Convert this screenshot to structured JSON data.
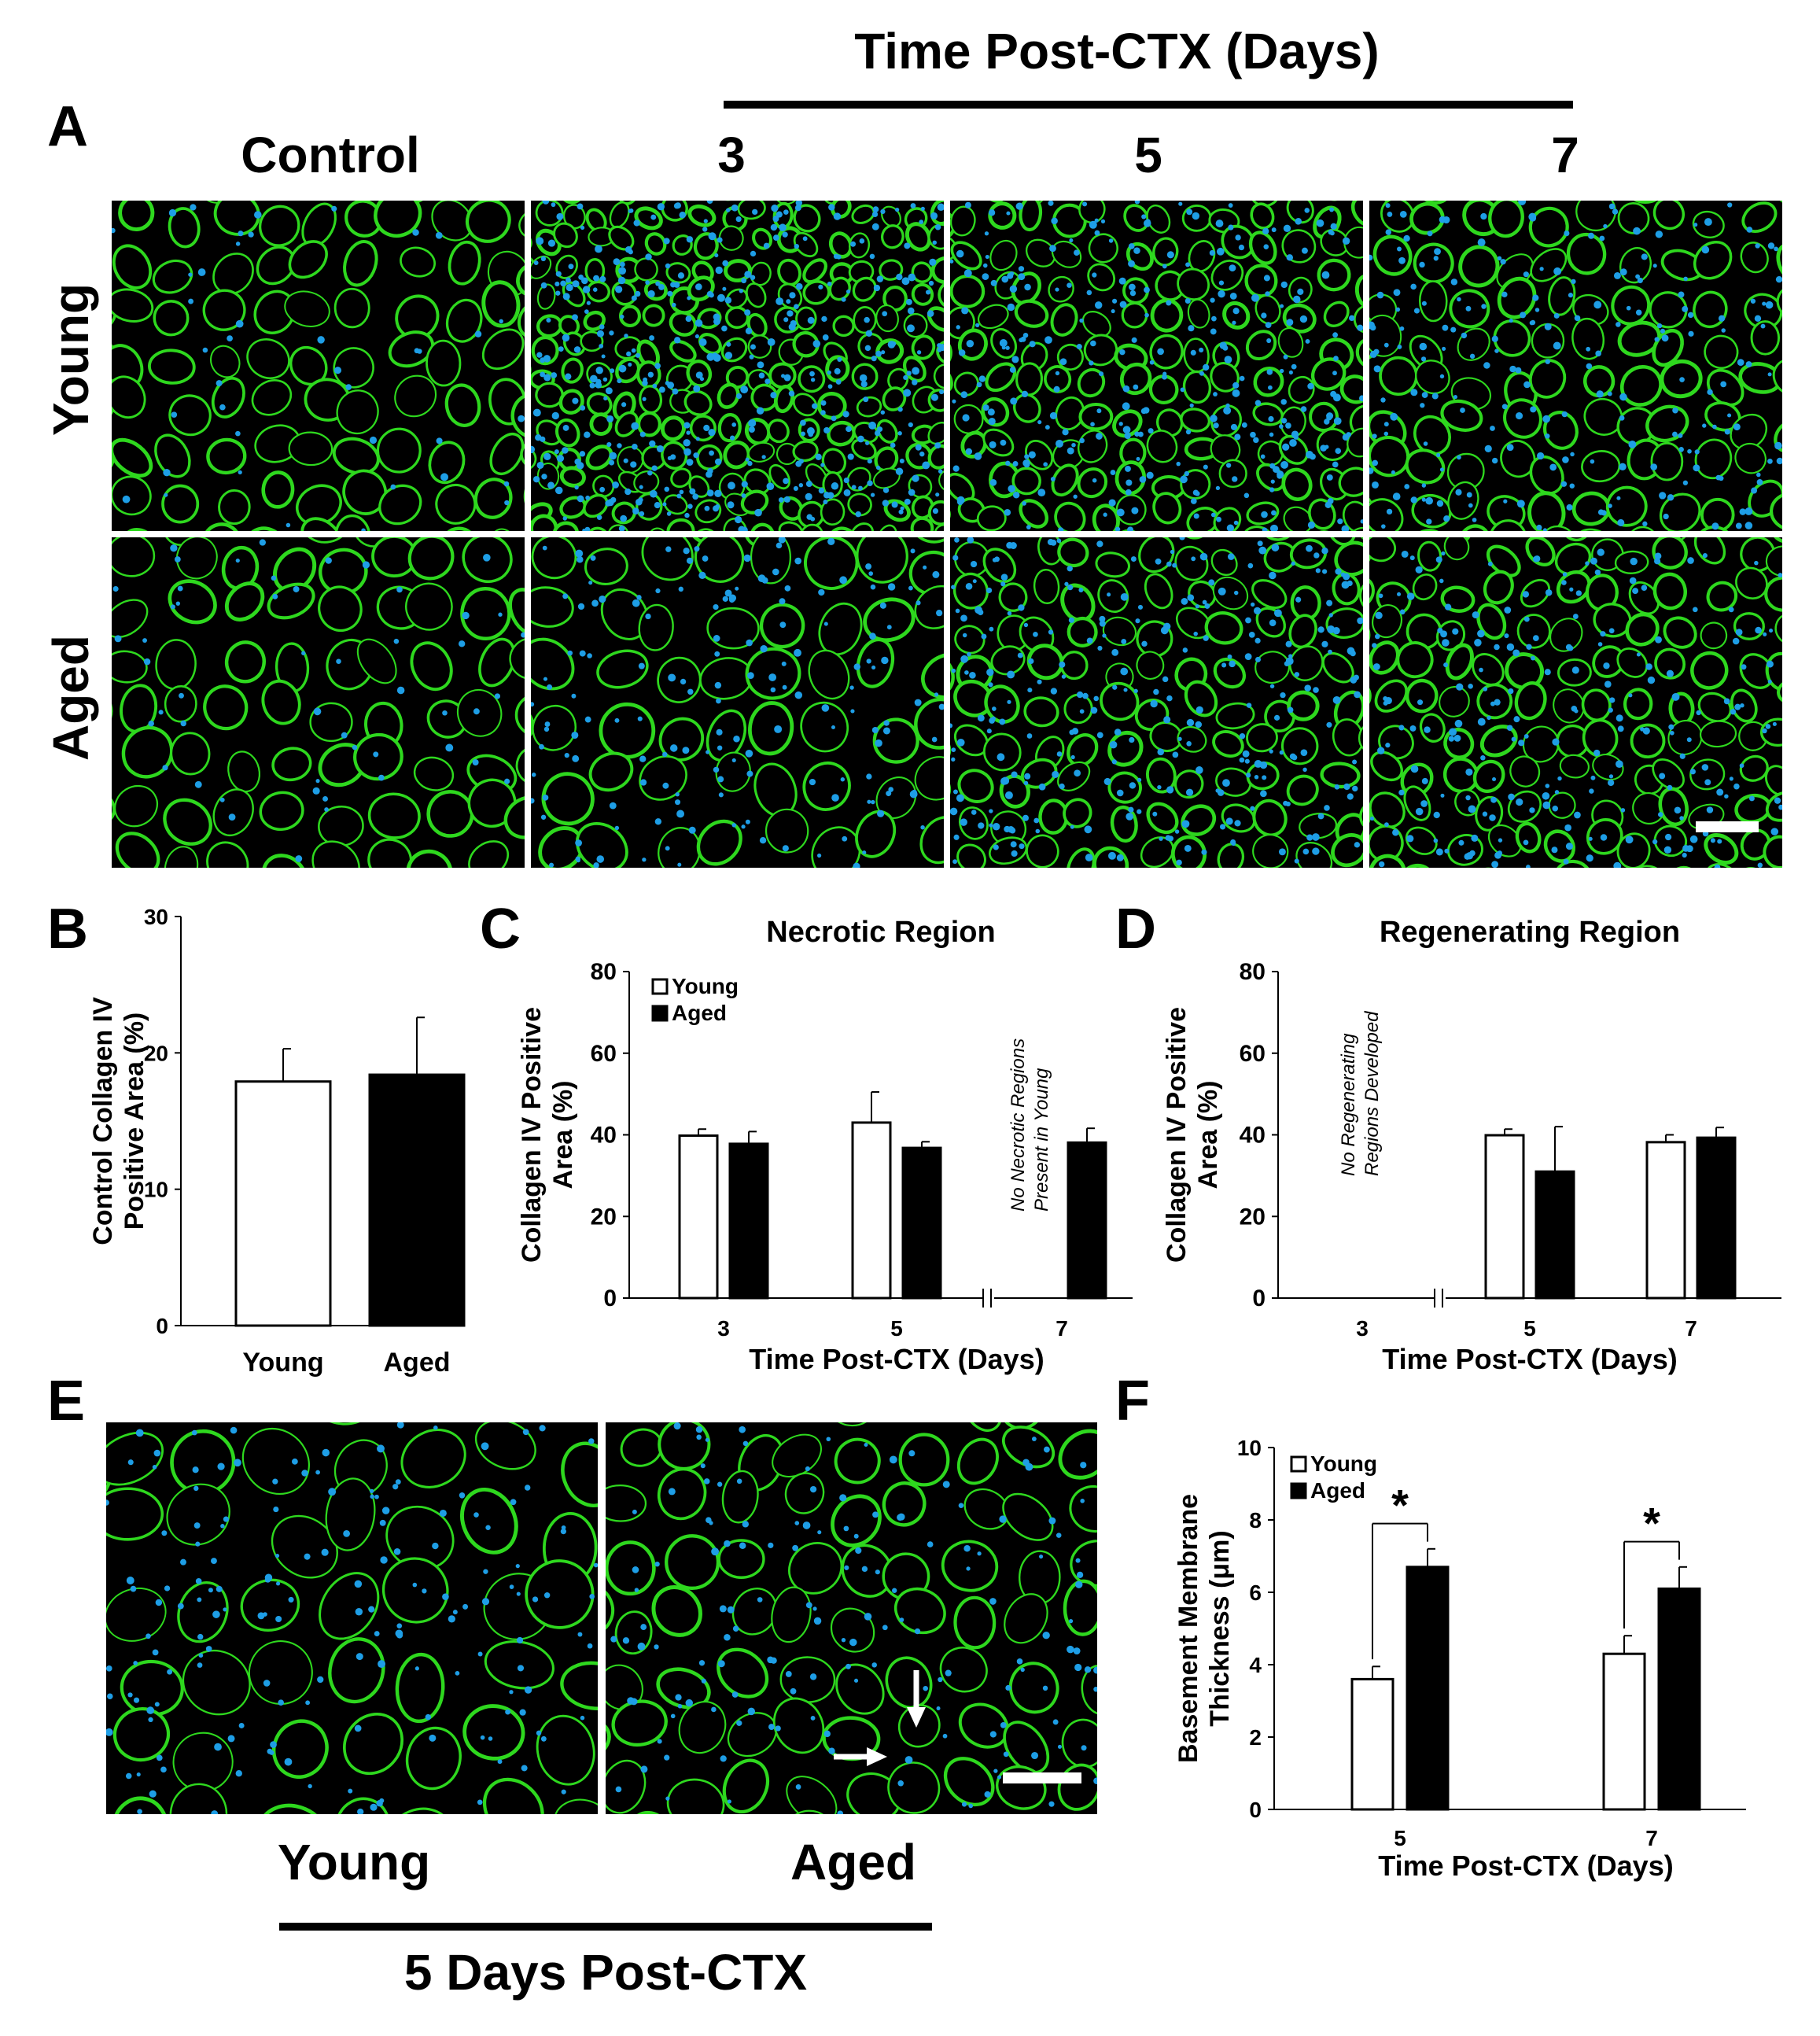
{
  "panelA": {
    "letter": "A",
    "header_group": "Time Post-CTX (Days)",
    "columns": [
      "Control",
      "3",
      "5",
      "7"
    ],
    "rows": [
      "Young",
      "Aged"
    ]
  },
  "panelB": {
    "letter": "B",
    "chart_data": {
      "type": "bar",
      "title": "",
      "ylabel": "Control Collagen IV Positive Area (%)",
      "ylabel_lines": [
        "Control Collagen IV",
        "Positive Area (%)"
      ],
      "xlabel": "",
      "categories": [
        "Young",
        "Aged"
      ],
      "values": [
        17.9,
        18.4
      ],
      "errors": [
        2.4,
        4.2
      ],
      "fill_colors": [
        "#ffffff",
        "#000000"
      ],
      "ylim": [
        0,
        30
      ],
      "yticks": [
        0,
        10,
        20,
        30
      ]
    }
  },
  "panelC": {
    "letter": "C",
    "chart_data": {
      "type": "bar",
      "title": "Necrotic Region",
      "ylabel": "Collagen IV Positive Area (%)",
      "ylabel_lines": [
        "Collagen IV Positive",
        "Area (%)"
      ],
      "xlabel": "Time Post-CTX (Days)",
      "categories": [
        "3",
        "5",
        "7"
      ],
      "series": [
        {
          "name": "Young",
          "values": [
            39.8,
            43.0,
            null
          ],
          "errors": [
            1.6,
            7.5,
            0
          ],
          "color": "#ffffff"
        },
        {
          "name": "Aged",
          "values": [
            37.8,
            36.8,
            38.1
          ],
          "errors": [
            3.0,
            1.5,
            3.5
          ],
          "color": "#000000"
        }
      ],
      "ylim": [
        0,
        80
      ],
      "yticks": [
        0,
        20,
        40,
        60,
        80
      ],
      "annotation_lines": [
        "No Necrotic Regions",
        "Present in Young"
      ],
      "legend_position": "top-left"
    }
  },
  "panelD": {
    "letter": "D",
    "chart_data": {
      "type": "bar",
      "title": "Regenerating Region",
      "ylabel": "Collagen IV Positive Area (%)",
      "ylabel_lines": [
        "Collagen IV Positive",
        "Area (%)"
      ],
      "xlabel": "Time Post-CTX (Days)",
      "categories": [
        "3",
        "5",
        "7"
      ],
      "series": [
        {
          "name": "Young",
          "values": [
            null,
            39.9,
            38.2
          ],
          "errors": [
            0,
            1.5,
            1.8
          ],
          "color": "#ffffff"
        },
        {
          "name": "Aged",
          "values": [
            null,
            31.0,
            39.3
          ],
          "errors": [
            0,
            11.0,
            2.5
          ],
          "color": "#000000"
        }
      ],
      "ylim": [
        0,
        80
      ],
      "yticks": [
        0,
        20,
        40,
        60,
        80
      ],
      "annotation_lines": [
        "No Regenerating",
        "Regions Developed"
      ]
    }
  },
  "panelE": {
    "letter": "E",
    "labels": [
      "Young",
      "Aged"
    ],
    "caption": "5 Days Post-CTX"
  },
  "panelF": {
    "letter": "F",
    "chart_data": {
      "type": "bar",
      "title": "",
      "ylabel": "Basement Membrane Thickness (μm)",
      "ylabel_lines": [
        "Basement Membrane",
        "Thickness (μm)"
      ],
      "xlabel": "Time Post-CTX (Days)",
      "categories": [
        "5",
        "7"
      ],
      "series": [
        {
          "name": "Young",
          "values": [
            3.6,
            4.3
          ],
          "errors": [
            0.35,
            0.5
          ],
          "color": "#ffffff"
        },
        {
          "name": "Aged",
          "values": [
            6.7,
            6.1
          ],
          "errors": [
            0.5,
            0.6
          ],
          "color": "#000000"
        }
      ],
      "ylim": [
        0,
        10
      ],
      "yticks": [
        0,
        2,
        4,
        6,
        8,
        10
      ],
      "significance": "*",
      "legend_position": "top-left"
    }
  },
  "colors": {
    "fluor_green": "#2ed81e",
    "fluor_blue": "#1e9ee6",
    "background": "#000000"
  }
}
